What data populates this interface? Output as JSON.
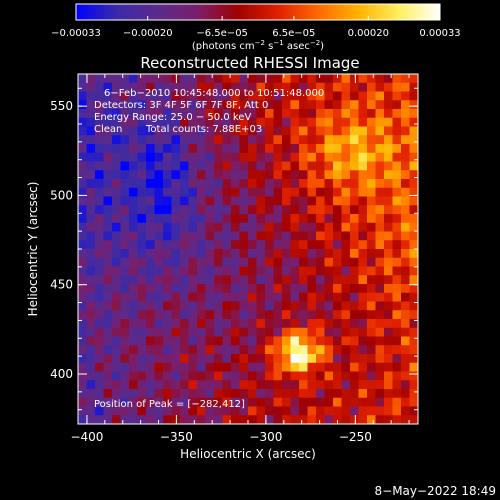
{
  "chart_data": {
    "type": "heatmap",
    "title": "Reconstructed RHESSI Image",
    "xlabel": "Heliocentric X (arcsec)",
    "ylabel": "Heliocentric Y (arcsec)",
    "xlim": [
      -405,
      -215
    ],
    "ylim": [
      372,
      568
    ],
    "x_ticks": [
      -400,
      -350,
      -300,
      -250
    ],
    "x_tick_labels": [
      "−400",
      "−350",
      "−300",
      "−250"
    ],
    "y_ticks": [
      400,
      450,
      500,
      550
    ],
    "y_tick_labels": [
      "400",
      "450",
      "500",
      "550"
    ],
    "colorbar": {
      "range": [
        -0.00033,
        0.00033
      ],
      "tick_values": [
        -0.00033,
        -0.0002,
        -6.5e-05,
        6.5e-05,
        0.0002,
        0.00033
      ],
      "tick_labels": [
        "−0.00033",
        "−0.00020",
        "−6.5e−05",
        "6.5e−05",
        "0.00020",
        "0.00033"
      ],
      "units_prefix": "(photons cm",
      "units_exp1": "−2",
      "units_mid": " s",
      "units_exp2": "−1",
      "units_mid2": " asec",
      "units_exp3": "−2",
      "units_suffix": ")",
      "stops": [
        "#0000ff",
        "#3a2aa8",
        "#5a2a8c",
        "#7a1e6a",
        "#a00000",
        "#e02000",
        "#ff6a00",
        "#ffb400",
        "#fff060",
        "#ffffff"
      ]
    },
    "annotations": {
      "time_range": "6−Feb−2010 10:45:48.000 to 10:51:48.000",
      "detectors": "Detectors: 3F 4F 5F 6F 7F 8F, Att 0",
      "energy_range": "Energy Range: 25.0 − 50.0 keV",
      "clean_label": "Clean",
      "total_counts": "Total counts: 7.88E+03",
      "peak": "Position of Peak = [−282,412]"
    },
    "peak_position": [
      -282,
      412
    ]
  },
  "footer": {
    "timestamp": "8−May−2022 18:49"
  }
}
